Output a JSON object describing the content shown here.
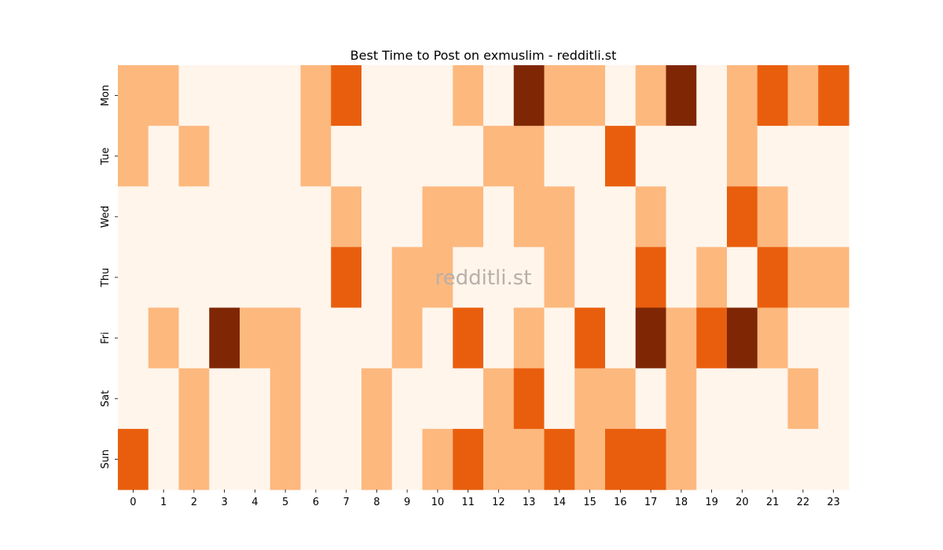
{
  "chart_data": {
    "type": "heatmap",
    "title": "Best Time to Post on exmuslim - redditli.st",
    "watermark": "redditli.st",
    "xlabel": "",
    "ylabel": "",
    "x": [
      "0",
      "1",
      "2",
      "3",
      "4",
      "5",
      "6",
      "7",
      "8",
      "9",
      "10",
      "11",
      "12",
      "13",
      "14",
      "15",
      "16",
      "17",
      "18",
      "19",
      "20",
      "21",
      "22",
      "23"
    ],
    "y": [
      "Mon",
      "Tue",
      "Wed",
      "Thu",
      "Fri",
      "Sat",
      "Sun"
    ],
    "values": [
      [
        1,
        1,
        0,
        0,
        0,
        0,
        1,
        2,
        0,
        0,
        0,
        1,
        0,
        3,
        1,
        1,
        0,
        1,
        3,
        0,
        1,
        2,
        1,
        2
      ],
      [
        1,
        0,
        1,
        0,
        0,
        0,
        1,
        0,
        0,
        0,
        0,
        0,
        1,
        1,
        0,
        0,
        2,
        0,
        0,
        0,
        1,
        0,
        0,
        0
      ],
      [
        0,
        0,
        0,
        0,
        0,
        0,
        0,
        1,
        0,
        0,
        1,
        1,
        0,
        1,
        1,
        0,
        0,
        1,
        0,
        0,
        2,
        1,
        0,
        0
      ],
      [
        0,
        0,
        0,
        0,
        0,
        0,
        0,
        2,
        0,
        1,
        1,
        0,
        0,
        0,
        1,
        0,
        0,
        2,
        0,
        1,
        0,
        2,
        1,
        1
      ],
      [
        0,
        1,
        0,
        3,
        1,
        1,
        0,
        0,
        0,
        1,
        0,
        2,
        0,
        1,
        0,
        2,
        0,
        3,
        1,
        2,
        3,
        1,
        0,
        0
      ],
      [
        0,
        0,
        1,
        0,
        0,
        1,
        0,
        0,
        1,
        0,
        0,
        0,
        1,
        2,
        0,
        1,
        1,
        0,
        1,
        0,
        0,
        0,
        1,
        0
      ],
      [
        2,
        0,
        1,
        0,
        0,
        1,
        0,
        0,
        1,
        0,
        1,
        2,
        1,
        1,
        2,
        1,
        2,
        2,
        1,
        0,
        0,
        0,
        0,
        0
      ]
    ],
    "colorscale": [
      "#fff5eb",
      "#fdb87e",
      "#e95e0d",
      "#7f2704"
    ],
    "grid": false,
    "legend": "none"
  }
}
